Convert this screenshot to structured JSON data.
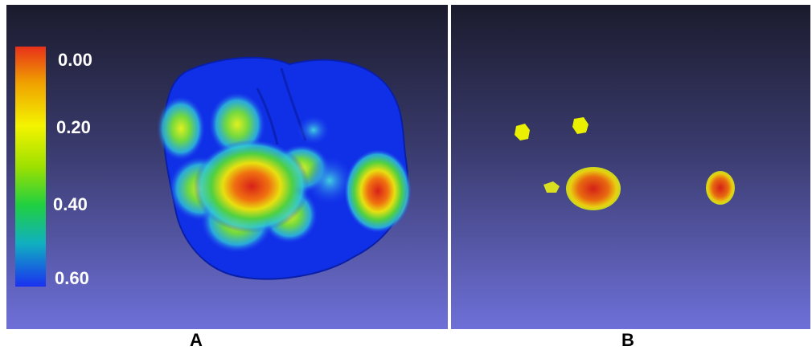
{
  "panels": [
    {
      "label": "A",
      "colorbar": {
        "ticks": [
          "0.00",
          "0.20",
          "0.40",
          "0.60"
        ]
      }
    },
    {
      "label": "B"
    }
  ]
}
